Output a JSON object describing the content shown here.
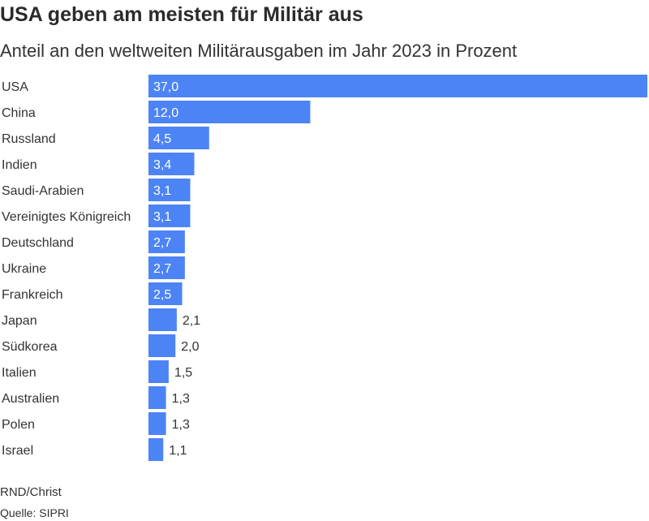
{
  "chart_data": {
    "type": "bar",
    "orientation": "horizontal",
    "title": "USA geben am meisten für Militär aus",
    "subtitle": "Anteil an den weltweiten Militärausgaben im Jahr 2023 in Prozent",
    "categories": [
      "USA",
      "China",
      "Russland",
      "Indien",
      "Saudi-Arabien",
      "Vereinigtes Königreich",
      "Deutschland",
      "Ukraine",
      "Frankreich",
      "Japan",
      "Südkorea",
      "Italien",
      "Australien",
      "Polen",
      "Israel"
    ],
    "values": [
      37.0,
      12.0,
      4.5,
      3.4,
      3.1,
      3.1,
      2.7,
      2.7,
      2.5,
      2.1,
      2.0,
      1.5,
      1.3,
      1.3,
      1.1
    ],
    "value_labels": [
      "37,0",
      "12,0",
      "4,5",
      "3,4",
      "3,1",
      "3,1",
      "2,7",
      "2,7",
      "2,5",
      "2,1",
      "2,0",
      "1,5",
      "1,3",
      "1,3",
      "1,1"
    ],
    "xlim": [
      0,
      37.0
    ],
    "grid": false,
    "legend": "none",
    "bar_color": "#4d84f5"
  },
  "footer": {
    "credit": "RND/Christ",
    "source": "Quelle: SIPRI"
  }
}
